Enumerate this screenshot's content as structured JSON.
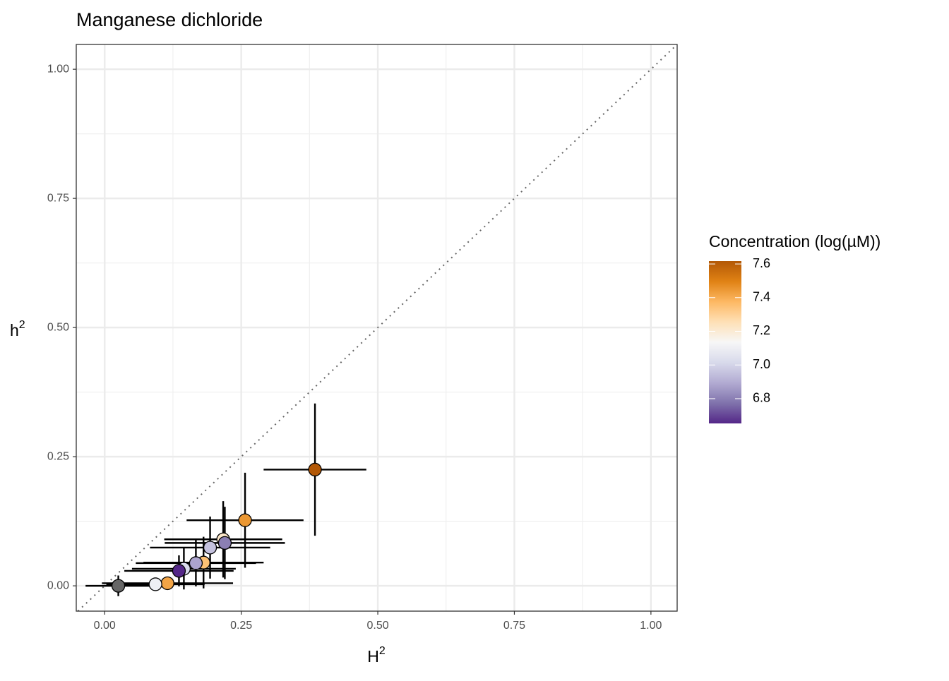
{
  "chart_data": {
    "type": "scatter",
    "title": "Manganese dichloride",
    "xlabel": "H",
    "xlabel_sup": "2",
    "ylabel": "h",
    "ylabel_sup": "2",
    "x": [
      0.385,
      0.257,
      0.217,
      0.22,
      0.193,
      0.181,
      0.167,
      0.145,
      0.136,
      0.115,
      0.093,
      0.025
    ],
    "values": [
      0.225,
      0.127,
      0.09,
      0.083,
      0.074,
      0.045,
      0.044,
      0.033,
      0.029,
      0.005,
      0.003,
      0.0
    ],
    "x_error": [
      0.094,
      0.107,
      0.108,
      0.11,
      0.11,
      0.11,
      0.11,
      0.095,
      0.1,
      0.12,
      0.09,
      0.06
    ],
    "y_error": [
      0.128,
      0.092,
      0.074,
      0.07,
      0.06,
      0.05,
      0.045,
      0.04,
      0.03,
      0.01,
      0.005,
      0.02
    ],
    "concentration": [
      7.62,
      7.45,
      7.22,
      6.8,
      6.95,
      7.35,
      6.88,
      7.02,
      6.65,
      7.42,
      7.1,
      null
    ],
    "na_color": "#666666",
    "xlim": [
      -0.052,
      1.048
    ],
    "ylim": [
      -0.049,
      1.048
    ],
    "xticks": [
      {
        "value": 0,
        "label": "0.00"
      },
      {
        "value": 0.25,
        "label": "0.25"
      },
      {
        "value": 0.5,
        "label": "0.50"
      },
      {
        "value": 0.75,
        "label": "0.75"
      },
      {
        "value": 1,
        "label": "1.00"
      }
    ],
    "yticks": [
      {
        "value": 0,
        "label": "0.00"
      },
      {
        "value": 0.25,
        "label": "0.25"
      },
      {
        "value": 0.5,
        "label": "0.50"
      },
      {
        "value": 0.75,
        "label": "0.75"
      },
      {
        "value": 1,
        "label": "1.00"
      }
    ],
    "minor_ticks": [
      0.125,
      0.375,
      0.625,
      0.875
    ],
    "grid": true,
    "legend": {
      "title": "Concentration (log(µM))",
      "clim": [
        6.653,
        7.617
      ],
      "ticks": [
        6.8,
        {
          "value": 7,
          "label": "7.0"
        },
        7.2,
        7.4,
        7.6
      ],
      "colors": [
        "#542788",
        "#8073ac",
        "#b2abd2",
        "#d8daeb",
        "#f7f7f7",
        "#fee0b6",
        "#fdb863",
        "#e08214",
        "#b35806"
      ]
    }
  }
}
